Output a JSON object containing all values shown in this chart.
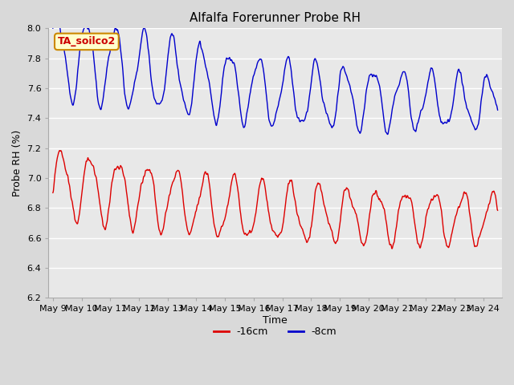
{
  "title": "Alfalfa Forerunner Probe RH",
  "xlabel": "Time",
  "ylabel": "Probe RH (%)",
  "ylim": [
    6.2,
    8.0
  ],
  "background_color": "#d9d9d9",
  "plot_bg_color": "#e8e8e8",
  "annotation_text": "TA_soilco2",
  "annotation_bg": "#ffffcc",
  "annotation_border": "#cc8800",
  "annotation_text_color": "#cc0000",
  "legend_labels": [
    "-16cm",
    "-8cm"
  ],
  "legend_colors": [
    "#dd0000",
    "#0000cc"
  ],
  "yticks": [
    6.2,
    6.4,
    6.6,
    6.8,
    7.0,
    7.2,
    7.4,
    7.6,
    7.8,
    8.0
  ],
  "xtick_labels": [
    "May 9",
    "May 10",
    "May 11",
    "May 12",
    "May 13",
    "May 14",
    "May 15",
    "May 16",
    "May 17",
    "May 18",
    "May 19",
    "May 20",
    "May 21",
    "May 22",
    "May 23",
    "May 24"
  ],
  "line_color_blue": "#0000cc",
  "line_color_red": "#dd0000",
  "line_width": 1.0
}
